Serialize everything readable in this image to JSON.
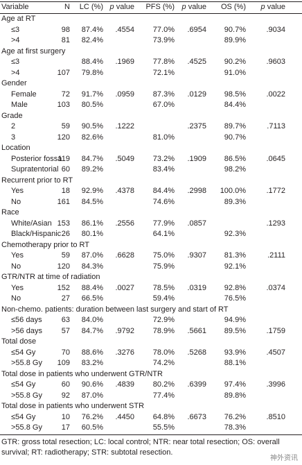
{
  "table": {
    "columns": [
      "Variable",
      "N",
      "LC (%)",
      "p value",
      "PFS (%)",
      "p value",
      "OS (%)",
      "p value"
    ],
    "sections": [
      {
        "title": "Age at RT",
        "rows": [
          [
            "≤3",
            "98",
            "87.4%",
            ".4554",
            "77.0%",
            ".6954",
            "90.7%",
            ".9034"
          ],
          [
            ">4",
            "81",
            "82.4%",
            null,
            "73.9%",
            null,
            "89.9%",
            null
          ]
        ]
      },
      {
        "title": "Age at first surgery",
        "rows": [
          [
            "≤3",
            null,
            "88.4%",
            ".1969",
            "77.8%",
            ".4525",
            "90.2%",
            ".9603"
          ],
          [
            ">4",
            "107",
            "79.8%",
            null,
            "72.1%",
            null,
            "91.0%",
            null
          ]
        ]
      },
      {
        "title": "Gender",
        "rows": [
          [
            "Female",
            "72",
            "91.7%",
            ".0959",
            "87.3%",
            ".0129",
            "98.5%",
            ".0022"
          ],
          [
            "Male",
            "103",
            "80.5%",
            null,
            "67.0%",
            null,
            "84.4%",
            null
          ]
        ]
      },
      {
        "title": "Grade",
        "rows": [
          [
            "2",
            "59",
            "90.5%",
            ".1222",
            null,
            ".2375",
            "89.7%",
            ".7113"
          ],
          [
            "3",
            "120",
            "82.6%",
            null,
            "81.0%",
            null,
            "90.7%",
            null
          ]
        ]
      },
      {
        "title": "Location",
        "rows": [
          [
            "Posterior fossa",
            "119",
            "84.7%",
            ".5049",
            "73.2%",
            ".1909",
            "86.5%",
            ".0645"
          ],
          [
            "Supratentorial",
            "60",
            "89.2%",
            null,
            "83.4%",
            null,
            "98.2%",
            null
          ]
        ]
      },
      {
        "title": "Recurrent prior to RT",
        "rows": [
          [
            "Yes",
            "18",
            "92.9%",
            ".4378",
            "84.4%",
            ".2998",
            "100.0%",
            ".1772"
          ],
          [
            "No",
            "161",
            "84.5%",
            null,
            "74.6%",
            null,
            "89.3%",
            null
          ]
        ]
      },
      {
        "title": "Race",
        "rows": [
          [
            "White/Asian",
            "153",
            "86.1%",
            ".2556",
            "77.9%",
            ".0857",
            null,
            ".1293"
          ],
          [
            "Black/Hispanic",
            "26",
            "80.1%",
            null,
            "64.1%",
            null,
            "92.3%",
            null
          ]
        ]
      },
      {
        "title": "Chemotherapy prior to RT",
        "rows": [
          [
            "Yes",
            "59",
            "87.0%",
            ".6628",
            "75.0%",
            ".9307",
            "81.3%",
            ".2111"
          ],
          [
            "No",
            "120",
            "84.3%",
            null,
            "75.9%",
            null,
            "92.1%",
            null
          ]
        ]
      },
      {
        "title": "GTR/NTR at time of radiation",
        "rows": [
          [
            "Yes",
            "152",
            "88.4%",
            ".0027",
            "78.5%",
            ".0319",
            "92.8%",
            ".0374"
          ],
          [
            "No",
            "27",
            "66.5%",
            null,
            "59.4%",
            null,
            "76.5%",
            null
          ]
        ]
      },
      {
        "title": "Non-chemo. patients: duration between last surgery and start of RT",
        "rows": [
          [
            "≤56 days",
            "63",
            "84.0%",
            null,
            "72.9%",
            null,
            "94.9%",
            null
          ],
          [
            ">56 days",
            "57",
            "84.7%",
            ".9792",
            "78.9%",
            ".5661",
            "89.5%",
            ".1759"
          ]
        ]
      },
      {
        "title": "Total dose",
        "rows": [
          [
            "≤54 Gy",
            "70",
            "88.6%",
            ".3276",
            "78.0%",
            ".5268",
            "93.9%",
            ".4507"
          ],
          [
            ">55.8 Gy",
            "109",
            "83.2%",
            null,
            "74.2%",
            null,
            "88.1%",
            null
          ]
        ]
      },
      {
        "title": "Total dose in patients who underwent GTR/NTR",
        "rows": [
          [
            "≤54 Gy",
            "60",
            "90.6%",
            ".4839",
            "80.2%",
            ".6399",
            "97.4%",
            ".3996"
          ],
          [
            ">55.8 Gy",
            "92",
            "87.0%",
            null,
            "77.4%",
            null,
            "89.8%",
            null
          ]
        ]
      },
      {
        "title": "Total dose in patients who underwent STR",
        "rows": [
          [
            "≤54 Gy",
            "10",
            "76.2%",
            ".4450",
            "64.8%",
            ".6673",
            "76.2%",
            ".8510"
          ],
          [
            ">55.8 Gy",
            "17",
            "60.5%",
            null,
            "55.5%",
            null,
            "78.3%",
            null
          ]
        ]
      }
    ]
  },
  "footnote": "GTR: gross total resection; LC: local control; NTR: near total resection; OS: overall survival; RT: radiotherapy; STR: subtotal resection.",
  "watermark": "神外资讯"
}
